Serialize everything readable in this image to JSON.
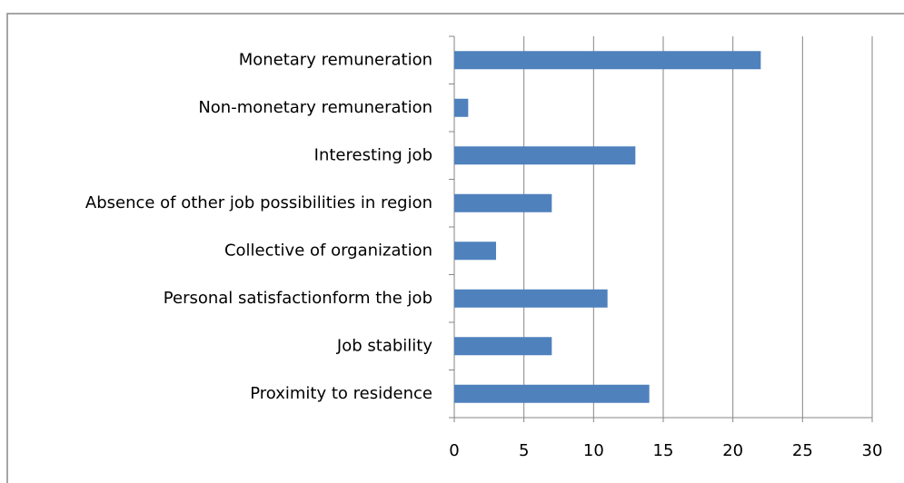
{
  "chart_data": {
    "type": "barh",
    "categories": [
      "Monetary remuneration",
      "Non-monetary remuneration",
      "Interesting job",
      "Absence of other job possibilities in region",
      "Collective of organization",
      "Personal satisfactionform the job",
      "Job stability",
      "Proximity to residence"
    ],
    "values": [
      22,
      1,
      13,
      7,
      3,
      11,
      7,
      14
    ],
    "color": "#4f81bd",
    "xlim": [
      0,
      30
    ],
    "xticks": [
      0,
      5,
      10,
      15,
      20,
      25,
      30
    ],
    "grid": true
  }
}
